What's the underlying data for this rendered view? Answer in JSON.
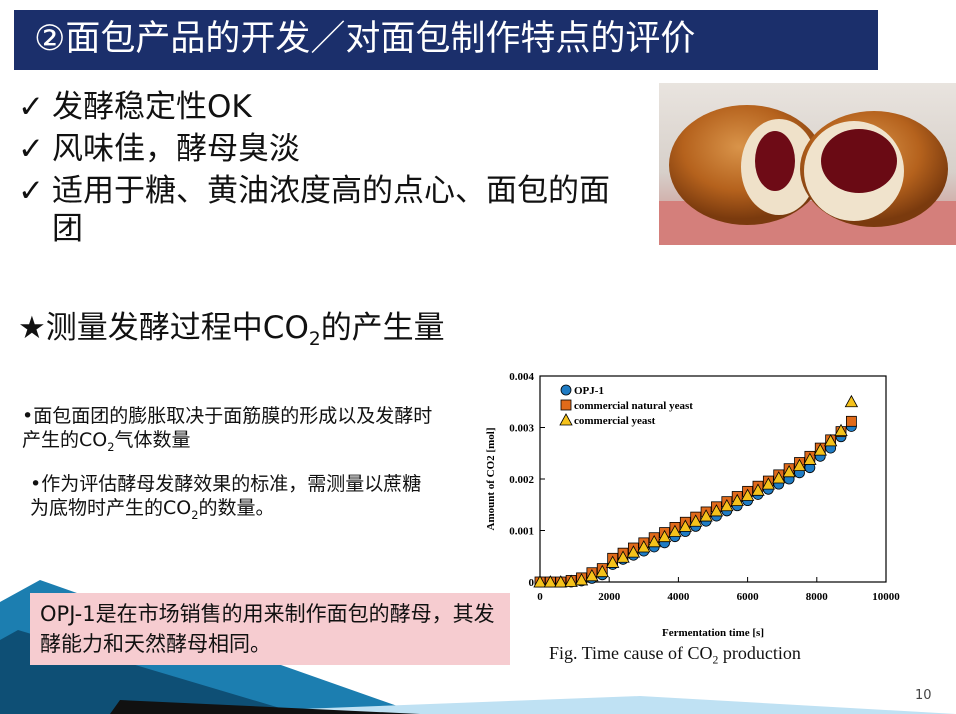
{
  "title": "②面包产品的开发／对面包制作特点的评价",
  "checklist": [
    {
      "mark": "✓",
      "text": "发酵稳定性OK"
    },
    {
      "mark": "✓",
      "text": "风味佳，酵母臭淡"
    },
    {
      "mark": "✓",
      "text": "适用于糖、黄油浓度高的点心、面包的面团"
    }
  ],
  "star_line": {
    "star": "★",
    "pre": "测量发酵过程中CO",
    "sub": "2",
    "post": "的产生量"
  },
  "bullets": [
    {
      "pre": "•面包面团的膨胀取决于面筋膜的形成以及发酵时产生的CO",
      "sub": "2",
      "post": "气体数量"
    },
    {
      "pre": "•作为评估酵母发酵效果的标准，需测量以蔗糖为底物时产生的CO",
      "sub": "2",
      "post": "的数量。"
    }
  ],
  "note": "OPJ-1是在市场销售的用来制作面包的酵母，其发酵能力和天然酵母相同。",
  "caption": {
    "pre": "Fig. Time cause of CO",
    "sub": "2",
    "post": " production"
  },
  "page_number": "10",
  "colors": {
    "title_bg": "#1b2f6b",
    "note_bg": "#f6ccd0",
    "opj1": "#1f7cc4",
    "natural": "#e06a1a",
    "commercial": "#f5c21b"
  },
  "chart_data": {
    "type": "scatter",
    "xlabel": "Fermentation time [s]",
    "ylabel": "Amount of CO2 [mol]",
    "xlim": [
      0,
      10000
    ],
    "ylim": [
      0,
      0.004
    ],
    "xticks": [
      "0",
      "2000",
      "4000",
      "6000",
      "8000",
      "10000"
    ],
    "yticks": [
      "0",
      "0.001",
      "0.002",
      "0.003",
      "0.004"
    ],
    "legend_position": "top-left",
    "series": [
      {
        "name": "OPJ-1",
        "marker": "circle",
        "color": "#1f7cc4",
        "x": [
          0,
          300,
          600,
          900,
          1200,
          1500,
          1800,
          2100,
          2400,
          2700,
          3000,
          3300,
          3600,
          3900,
          4200,
          4500,
          4800,
          5100,
          5400,
          5700,
          6000,
          6300,
          6600,
          6900,
          7200,
          7500,
          7800,
          8100,
          8400,
          8700,
          9000
        ],
        "y": [
          0,
          0,
          0,
          0,
          2e-05,
          7e-05,
          0.00014,
          0.00034,
          0.00044,
          0.00052,
          0.0006,
          0.00068,
          0.00076,
          0.00088,
          0.00098,
          0.00108,
          0.00118,
          0.00128,
          0.00138,
          0.00148,
          0.00158,
          0.0017,
          0.0018,
          0.0019,
          0.002,
          0.00212,
          0.00222,
          0.00244,
          0.0026,
          0.00282,
          0.00302
        ]
      },
      {
        "name": "commercial natural yeast",
        "marker": "square",
        "color": "#e06a1a",
        "x": [
          0,
          300,
          600,
          900,
          1200,
          1500,
          1800,
          2100,
          2400,
          2700,
          3000,
          3300,
          3600,
          3900,
          4200,
          4500,
          4800,
          5100,
          5400,
          5700,
          6000,
          6300,
          6600,
          6900,
          7200,
          7500,
          7800,
          8100,
          8400,
          8700,
          9000
        ],
        "y": [
          0,
          0,
          0,
          3e-05,
          8e-05,
          0.00018,
          0.00026,
          0.00046,
          0.00056,
          0.00066,
          0.00076,
          0.00086,
          0.00096,
          0.00106,
          0.00116,
          0.00126,
          0.00136,
          0.00146,
          0.00156,
          0.00166,
          0.00176,
          0.00186,
          0.00196,
          0.00208,
          0.0022,
          0.00232,
          0.00244,
          0.0026,
          0.00276,
          0.00292,
          0.00312
        ]
      },
      {
        "name": "commercial yeast",
        "marker": "triangle",
        "color": "#f5c21b",
        "x": [
          0,
          300,
          600,
          900,
          1200,
          1500,
          1800,
          2100,
          2400,
          2700,
          3000,
          3300,
          3600,
          3900,
          4200,
          4500,
          4800,
          5100,
          5400,
          5700,
          6000,
          6300,
          6600,
          6900,
          7200,
          7500,
          7800,
          8100,
          8400,
          8700,
          9000
        ],
        "y": [
          0,
          0,
          0,
          1e-05,
          4e-05,
          0.00012,
          0.0002,
          0.00038,
          0.00048,
          0.00058,
          0.00068,
          0.00078,
          0.00088,
          0.00098,
          0.00108,
          0.00118,
          0.00128,
          0.00138,
          0.00148,
          0.00158,
          0.00168,
          0.00178,
          0.0019,
          0.00202,
          0.00214,
          0.00226,
          0.00238,
          0.00256,
          0.00274,
          0.00294,
          0.0035
        ]
      }
    ]
  }
}
